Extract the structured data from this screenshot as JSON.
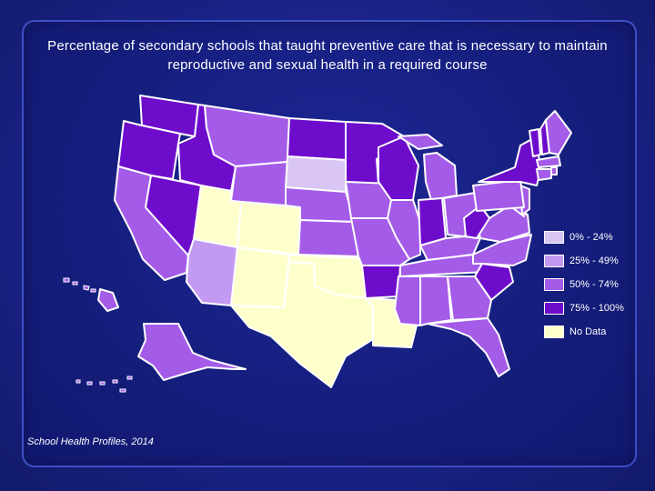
{
  "title": "Percentage of secondary schools that taught preventive care that is necessary to maintain reproductive and sexual health in a required course",
  "source": "School Health Profiles, 2014",
  "legend": [
    {
      "label": "0% - 24%",
      "color": "#d9c6f5"
    },
    {
      "label": "25% - 49%",
      "color": "#c39af2"
    },
    {
      "label": "50% - 74%",
      "color": "#a45be8"
    },
    {
      "label": "75% - 100%",
      "color": "#6e0ccc"
    },
    {
      "label": "No Data",
      "color": "#ffffcc"
    }
  ],
  "colors": {
    "background": "#1b2288",
    "state_border": "#ffffff",
    "text": "#ffffff"
  },
  "map_data": {
    "region": "United States",
    "classes": [
      "0% - 24%",
      "25% - 49%",
      "50% - 74%",
      "75% - 100%",
      "No Data"
    ],
    "states": {
      "WA": "75% - 100%",
      "OR": "75% - 100%",
      "ID": "75% - 100%",
      "NV": "75% - 100%",
      "CA": "50% - 74%",
      "MT": "50% - 74%",
      "WY": "50% - 74%",
      "UT": "No Data",
      "CO": "No Data",
      "AZ": "25% - 49%",
      "NM": "No Data",
      "ND": "75% - 100%",
      "SD": "0% - 24%",
      "NE": "50% - 74%",
      "KS": "50% - 74%",
      "OK": "No Data",
      "TX": "No Data",
      "MN": "75% - 100%",
      "IA": "50% - 74%",
      "MO": "50% - 74%",
      "AR": "75% - 100%",
      "LA": "No Data",
      "WI": "75% - 100%",
      "IL": "50% - 74%",
      "MI": "50% - 74%",
      "IN": "75% - 100%",
      "OH": "50% - 74%",
      "KY": "50% - 74%",
      "TN": "50% - 74%",
      "MS": "50% - 74%",
      "AL": "50% - 74%",
      "GA": "50% - 74%",
      "FL": "50% - 74%",
      "SC": "75% - 100%",
      "NC": "50% - 74%",
      "VA": "50% - 74%",
      "WV": "75% - 100%",
      "PA": "50% - 74%",
      "NY": "75% - 100%",
      "VT": "75% - 100%",
      "NH": "75% - 100%",
      "ME": "50% - 74%",
      "MA": "50% - 74%",
      "RI": "50% - 74%",
      "CT": "50% - 74%",
      "NJ": "50% - 74%",
      "DE": "50% - 74%",
      "MD": "50% - 74%",
      "AK": "50% - 74%",
      "HI": "50% - 74%"
    }
  }
}
